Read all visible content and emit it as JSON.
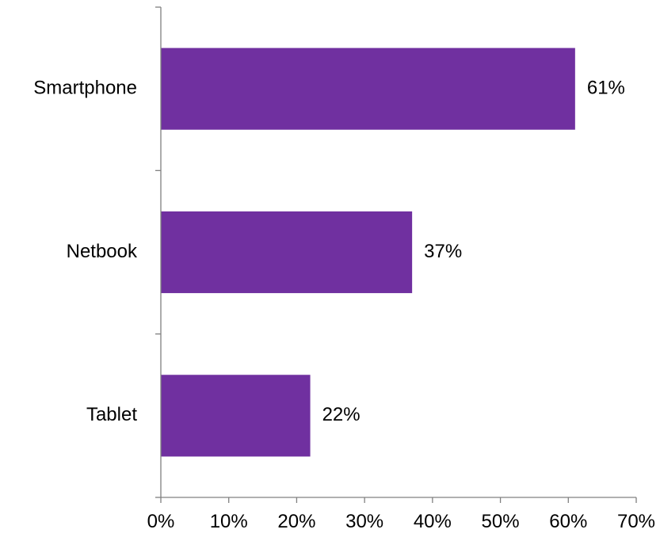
{
  "chart_data": {
    "type": "bar",
    "orientation": "horizontal",
    "categories": [
      "Smartphone",
      "Netbook",
      "Tablet"
    ],
    "values": [
      61,
      37,
      22
    ],
    "value_labels": [
      "61%",
      "37%",
      "22%"
    ],
    "xlim": [
      0,
      70
    ],
    "x_ticks": [
      0,
      10,
      20,
      30,
      40,
      50,
      60,
      70
    ],
    "x_tick_labels": [
      "0%",
      "10%",
      "20%",
      "30%",
      "40%",
      "50%",
      "60%",
      "70%"
    ],
    "grid": false,
    "legend": "none",
    "bar_color": "#7030A0"
  }
}
